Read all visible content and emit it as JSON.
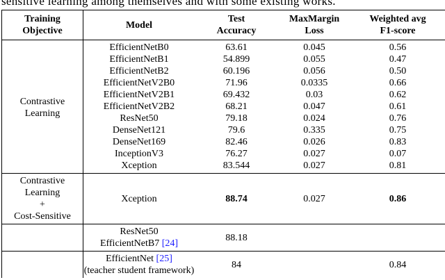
{
  "caption_fragment": "sensitive learning among themselves and with some existing works.",
  "header": [
    [
      "Training",
      "Objective"
    ],
    [
      "Model"
    ],
    [
      "Test",
      "Accuracy"
    ],
    [
      "MaxMargin",
      "Loss"
    ],
    [
      "Weighted avg",
      "F1-score"
    ]
  ],
  "groups": [
    {
      "objective": [
        "Contrastive",
        "Learning"
      ],
      "rows": [
        {
          "model": [
            "EfficientNetB0"
          ],
          "accuracy": "63.61",
          "loss": "0.045",
          "f1": "0.56"
        },
        {
          "model": [
            "EfficientNetB1"
          ],
          "accuracy": "54.899",
          "loss": "0.055",
          "f1": "0.47"
        },
        {
          "model": [
            "EfficientNetB2"
          ],
          "accuracy": "60.196",
          "loss": "0.056",
          "f1": "0.50"
        },
        {
          "model": [
            "EfficientNetV2B0"
          ],
          "accuracy": "71.96",
          "loss": "0.0335",
          "f1": "0.66"
        },
        {
          "model": [
            "EfficientNetV2B1"
          ],
          "accuracy": "69.432",
          "loss": "0.03",
          "f1": "0.62"
        },
        {
          "model": [
            "EfficientNetV2B2"
          ],
          "accuracy": "68.21",
          "loss": "0.047",
          "f1": "0.61"
        },
        {
          "model": [
            "ResNet50"
          ],
          "accuracy": "79.18",
          "loss": "0.024",
          "f1": "0.76"
        },
        {
          "model": [
            "DenseNet121"
          ],
          "accuracy": "79.6",
          "loss": "0.335",
          "f1": "0.75"
        },
        {
          "model": [
            "DenseNet169"
          ],
          "accuracy": "82.46",
          "loss": "0.026",
          "f1": "0.83"
        },
        {
          "model": [
            "InceptionV3"
          ],
          "accuracy": "76.27",
          "loss": "0.027",
          "f1": "0.07"
        },
        {
          "model": [
            "Xception"
          ],
          "accuracy": "83.544",
          "loss": "0.027",
          "f1": "0.81"
        }
      ]
    },
    {
      "objective": [
        "Contrastive",
        "Learning",
        "+",
        "Cost-Sensitive"
      ],
      "bold": [
        "accuracy",
        "f1"
      ],
      "rows": [
        {
          "model": [
            "Xception"
          ],
          "accuracy": "88.74",
          "loss": "0.027",
          "f1": "0.86"
        }
      ]
    },
    {
      "rows": [
        {
          "model": [
            "ResNet50",
            "EfficientNetB7"
          ],
          "cite": "[24]",
          "accuracy": "88.18"
        }
      ]
    },
    {
      "rows": [
        {
          "model": [
            "EfficientNet",
            "(teacher student framework)"
          ],
          "cite_after_first": "[25]",
          "accuracy": "84",
          "f1": "0.84"
        }
      ]
    }
  ]
}
